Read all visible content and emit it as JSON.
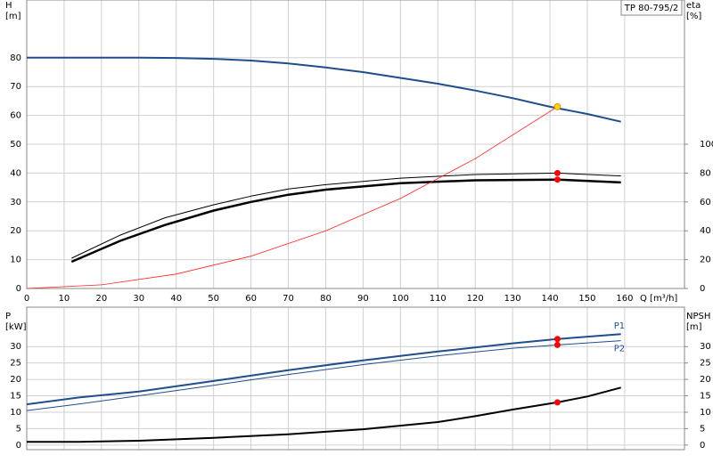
{
  "chart_data": [
    {
      "type": "line",
      "title": "TP 80-795/2",
      "ylabel": [
        "H",
        "[m]"
      ],
      "y2label": [
        "eta",
        "[%]"
      ],
      "xlabel": "Q [m³/h]",
      "xlim": [
        0,
        176
      ],
      "xticks": [
        0,
        10,
        20,
        30,
        40,
        50,
        60,
        70,
        80,
        90,
        100,
        110,
        120,
        130,
        140,
        150,
        160
      ],
      "ylim": [
        0,
        100
      ],
      "yticks": [
        0,
        10,
        20,
        30,
        40,
        50,
        60,
        70,
        80
      ],
      "y2lim": [
        0,
        200
      ],
      "y2ticks": [
        0,
        20,
        40,
        60,
        80,
        100
      ],
      "grid": true,
      "series": [
        {
          "color": "#1f4e8c",
          "width": 2,
          "x": [
            0,
            15,
            30,
            40,
            50,
            60,
            70,
            80,
            90,
            100,
            110,
            120,
            130,
            140,
            150,
            159
          ],
          "values": [
            80,
            80,
            80,
            79.9,
            79.6,
            79,
            78,
            76.6,
            75,
            73,
            71,
            68.6,
            66,
            63,
            60.5,
            57.8
          ]
        },
        {
          "color": "#000000",
          "width": 1,
          "axis": "y2",
          "x": [
            12,
            25,
            37,
            50,
            60,
            70,
            80,
            100,
            120,
            142,
            159
          ],
          "values": [
            21,
            37,
            49,
            58,
            64,
            69,
            72,
            76.5,
            79,
            80,
            78
          ]
        },
        {
          "color": "#000000",
          "width": 2.5,
          "axis": "y2",
          "x": [
            12,
            25,
            37,
            50,
            60,
            70,
            80,
            100,
            120,
            142,
            159
          ],
          "values": [
            18.5,
            33,
            44,
            54,
            60,
            65,
            68.5,
            73,
            75,
            75.5,
            73.5
          ]
        },
        {
          "color": "#ff2020",
          "width": 0.8,
          "x": [
            0,
            20,
            40,
            60,
            80,
            100,
            120,
            142
          ],
          "values": [
            0,
            1.25,
            5,
            11.2,
            20,
            31.2,
            45,
            63
          ]
        }
      ],
      "markers": [
        {
          "x": 142,
          "value": 63,
          "color": "#ffd700"
        },
        {
          "x": 142,
          "value": 80,
          "axis": "y2",
          "color": "#ff0000"
        },
        {
          "x": 142,
          "value": 75.5,
          "axis": "y2",
          "color": "#ff0000"
        }
      ]
    },
    {
      "type": "line",
      "ylabel": [
        "P",
        "[kW]"
      ],
      "y2label": [
        "NPSH",
        "[m]"
      ],
      "xlim": [
        0,
        176
      ],
      "ylim": [
        -1.4,
        42
      ],
      "yticks": [
        0,
        5,
        10,
        15,
        20,
        25,
        30
      ],
      "y2lim": [
        -1.4,
        42
      ],
      "y2ticks": [
        0,
        5,
        10,
        15,
        20,
        25,
        30
      ],
      "grid": true,
      "series": [
        {
          "name": "P1",
          "color": "#1f4e8c",
          "width": 2,
          "x": [
            0,
            14,
            30,
            50,
            70,
            90,
            110,
            130,
            142,
            159
          ],
          "values": [
            12.4,
            14.5,
            16.3,
            19.5,
            22.8,
            25.8,
            28.5,
            31,
            32.3,
            33.8
          ]
        },
        {
          "name": "P2",
          "color": "#1f4e8c",
          "width": 1,
          "x": [
            0,
            14,
            30,
            50,
            70,
            90,
            110,
            130,
            142,
            159
          ],
          "values": [
            10.5,
            12.5,
            15,
            18.2,
            21.5,
            24.5,
            27.2,
            29.5,
            30.5,
            31.8
          ]
        },
        {
          "color": "#000000",
          "width": 2,
          "axis": "y2",
          "x": [
            0,
            14,
            30,
            50,
            70,
            90,
            110,
            120,
            130,
            142,
            150,
            159
          ],
          "values": [
            1,
            1,
            1.3,
            2.2,
            3.3,
            4.8,
            7,
            8.8,
            10.8,
            13,
            14.8,
            17.5
          ]
        }
      ],
      "markers": [
        {
          "x": 142,
          "value": 32.3,
          "color": "#ff0000"
        },
        {
          "x": 142,
          "value": 30.5,
          "color": "#ff0000"
        },
        {
          "x": 142,
          "value": 13,
          "axis": "y2",
          "color": "#ff0000"
        }
      ]
    }
  ]
}
